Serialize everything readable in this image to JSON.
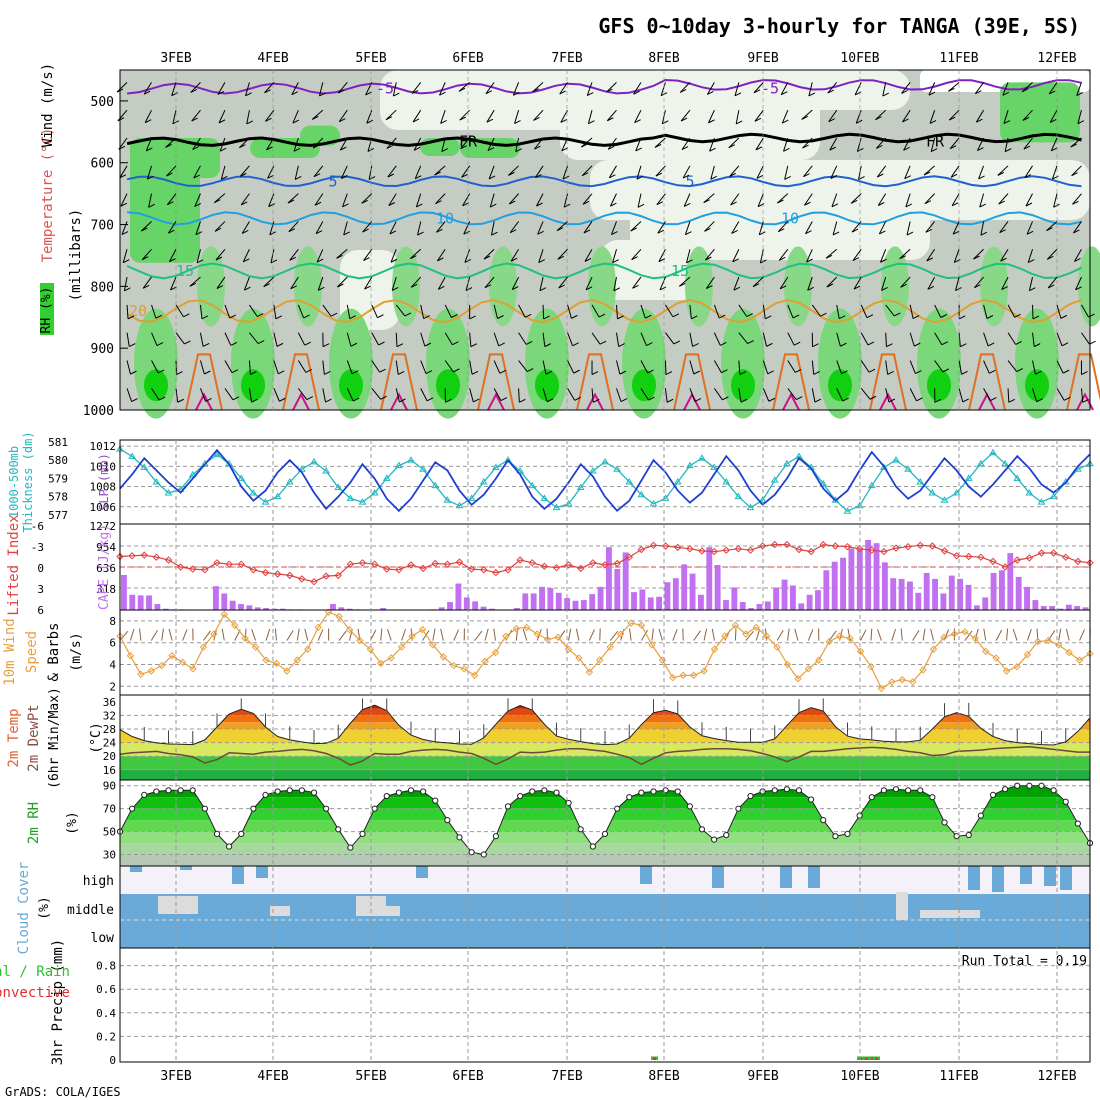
{
  "title": "GFS 0~10day 3-hourly for TANGA (39E, 5S)",
  "credit": "GrADS: COLA/IGES",
  "dates": [
    "3FEB",
    "4FEB",
    "5FEB",
    "6FEB",
    "7FEB",
    "8FEB",
    "9FEB",
    "10FEB",
    "11FEB",
    "12FEB"
  ],
  "colors": {
    "slp": "#1f3fd0",
    "thickness": "#20b8c0",
    "lifted": "#e04040",
    "cape": "#c070f0",
    "wind": "#e8a040",
    "barb": "#8a6040",
    "rh_line": "#202020",
    "cloud": "#6aaad8",
    "rain": "#30c030",
    "conv": "#e03030"
  },
  "panels": {
    "upper": {
      "label_rh": "RH (%)",
      "label_temp": "Temperature (°C)",
      "label_wind": "Wind (m/s)",
      "label_mb": "(millibars)",
      "yticks": [
        "500",
        "600",
        "700",
        "800",
        "900",
        "1000"
      ],
      "contours": [
        {
          "label": "-5",
          "color": "#8020c0"
        },
        {
          "label": "FR",
          "color": "#000000"
        },
        {
          "label": "5",
          "color": "#2060d0"
        },
        {
          "label": "10",
          "color": "#20a0e0"
        },
        {
          "label": "15",
          "color": "#20c080"
        },
        {
          "label": "20",
          "color": "#e0a030"
        }
      ]
    },
    "slp": {
      "label_thk1": "1000-500mb",
      "label_thk2": "Thickness (dm)",
      "label_slp": "SLP (mb)",
      "left_ticks": [
        "581",
        "580",
        "579",
        "578",
        "577"
      ],
      "right_ticks": [
        "1012",
        "1010",
        "1008",
        "1006"
      ]
    },
    "cape": {
      "label_li": "Lifted Index",
      "label_cape": "CAPE (J/kg)",
      "left_ticks": [
        "-6",
        "-3",
        "0",
        "3",
        "6"
      ],
      "right_ticks": [
        "1272",
        "954",
        "636",
        "318"
      ]
    },
    "wind10": {
      "label1": "10m Wind",
      "label2": "Speed",
      "label3": "& Barbs",
      "label4": "(m/s)",
      "yticks": [
        "8",
        "6",
        "4",
        "2"
      ]
    },
    "temp": {
      "label1": "2m Temp",
      "label2": "2m DewPt",
      "label3": "(6hr Min/Max)",
      "label4": "(°C)",
      "yticks": [
        "36",
        "32",
        "28",
        "24",
        "20",
        "16"
      ]
    },
    "rh2m": {
      "label1": "2m RH",
      "label2": "(%)",
      "yticks": [
        "90",
        "70",
        "50",
        "30"
      ]
    },
    "cloud": {
      "label1": "Cloud Cover",
      "label2": "(%)",
      "high": "high",
      "middle": "middle",
      "low": "low"
    },
    "precip": {
      "label1": "3hr Precip (mm)",
      "label2": "Total / Rain",
      "label3": "Convective",
      "run_total": "Run Total = 0.19",
      "yticks": [
        "0.8",
        "0.6",
        "0.4",
        "0.2",
        "0"
      ]
    }
  },
  "chart_data": {
    "type": "line",
    "title": "GFS 0~10day 3-hourly for TANGA (39E, 5S)",
    "x_axis": "3-hourly steps starting 2 FEB 06Z, 81 steps, tick marks at 00Z each day",
    "series": [
      {
        "name": "SLP (mb)",
        "values": [
          1007.8,
          1009.2,
          1010.8,
          1009.6,
          1008.4,
          1007.4,
          1008.8,
          1010.2,
          1011.6,
          1010.2,
          1008.0,
          1006.6,
          1007.6,
          1009.4,
          1010.6,
          1009.4,
          1007.4,
          1005.8,
          1007.0,
          1008.4,
          1010.2,
          1008.8,
          1006.8,
          1005.6,
          1006.8,
          1008.6,
          1010.4,
          1009.6,
          1007.6,
          1006.2,
          1007.2,
          1008.8,
          1010.6,
          1009.2,
          1007.0,
          1005.8,
          1006.8,
          1008.4,
          1010.2,
          1009.0,
          1007.0,
          1005.6,
          1006.6,
          1008.6,
          1010.6,
          1009.4,
          1007.6,
          1006.4,
          1007.4,
          1009.2,
          1011.0,
          1009.6,
          1007.6,
          1006.2,
          1007.2,
          1008.8,
          1010.8,
          1009.8,
          1007.8,
          1006.6,
          1007.6,
          1009.6,
          1011.4,
          1010.0,
          1008.0,
          1006.8,
          1007.6,
          1009.2,
          1010.8,
          1009.6,
          1008.0,
          1007.0,
          1008.2,
          1009.6,
          1011.0,
          1009.8,
          1008.2,
          1007.4,
          1008.4,
          1010.0,
          1011.2
        ]
      },
      {
        "name": "Thickness (dm)",
        "values": [
          580.6,
          580.2,
          579.6,
          578.8,
          578.2,
          578.4,
          579.2,
          579.8,
          580.3,
          579.8,
          579.0,
          578.2,
          577.7,
          578.0,
          578.8,
          579.5,
          579.9,
          579.4,
          578.5,
          577.9,
          577.7,
          578.2,
          579.0,
          579.7,
          580.0,
          579.5,
          578.6,
          577.8,
          577.5,
          577.9,
          578.8,
          579.6,
          580.0,
          579.4,
          578.6,
          577.9,
          577.4,
          577.6,
          578.5,
          579.4,
          579.9,
          579.5,
          578.8,
          578.1,
          577.6,
          577.9,
          578.8,
          579.7,
          580.1,
          579.6,
          578.8,
          578.0,
          577.4,
          577.8,
          578.9,
          579.8,
          580.2,
          579.6,
          578.7,
          577.8,
          577.2,
          577.5,
          578.6,
          579.6,
          580.0,
          579.5,
          578.8,
          578.2,
          577.8,
          578.2,
          579.0,
          579.8,
          580.4,
          579.8,
          579.0,
          578.2,
          577.7,
          578.0,
          578.8,
          579.5,
          579.8
        ]
      },
      {
        "name": "Lifted Index",
        "values": [
          -1.5,
          -1.6,
          -1.7,
          -1.4,
          -1.0,
          0.0,
          0.3,
          0.4,
          -0.6,
          -0.4,
          -0.4,
          0.4,
          0.8,
          1.0,
          1.2,
          1.7,
          2.1,
          1.3,
          1.2,
          -0.4,
          -0.6,
          -0.4,
          0.3,
          0.4,
          -0.3,
          0.2,
          -0.5,
          -0.4,
          -0.7,
          0.3,
          0.4,
          0.8,
          0.4,
          -1.0,
          -0.6,
          -0.1,
          0.1,
          -0.3,
          0.2,
          -0.6,
          -0.3,
          -0.5,
          -1.4,
          -2.5,
          -3.1,
          -3.0,
          -2.8,
          -2.6,
          -2.3,
          -2.2,
          -2.4,
          -2.6,
          -2.4,
          -3.0,
          -3.2,
          -3.2,
          -2.5,
          -2.2,
          -3.2,
          -3.0,
          -2.9,
          -2.6,
          -2.4,
          -2.2,
          -2.7,
          -2.9,
          -3.1,
          -3.0,
          -2.3,
          -1.6,
          -1.5,
          -1.4,
          -0.8,
          0.0,
          -1.0,
          -1.3,
          -2.0,
          -2.0,
          -1.4,
          -0.8,
          -0.6
        ]
      },
      {
        "name": "CAPE (J/kg)",
        "values": [
          530,
          230,
          220,
          220,
          90,
          20,
          10,
          10,
          0,
          0,
          0,
          360,
          250,
          140,
          90,
          70,
          40,
          30,
          20,
          20,
          10,
          10,
          0,
          0,
          0,
          90,
          40,
          20,
          10,
          0,
          0,
          30,
          0,
          0,
          0,
          0,
          0,
          10,
          40,
          120,
          400,
          190,
          130,
          50,
          20,
          0,
          0,
          30,
          250,
          250,
          350,
          330,
          260,
          180,
          140,
          150,
          240,
          350,
          950,
          620,
          870,
          270,
          310,
          190,
          200,
          420,
          480,
          690,
          550,
          230,
          950,
          680,
          150,
          340,
          120,
          30,
          90,
          130,
          340,
          460,
          370,
          100,
          230,
          300,
          600,
          730,
          790,
          930,
          920,
          1060,
          1010,
          720,
          480,
          470,
          430,
          260,
          560,
          470,
          250,
          520,
          470,
          380,
          70,
          190,
          560,
          600,
          860,
          500,
          350,
          150,
          60,
          60,
          20,
          80,
          60,
          40
        ]
      },
      {
        "name": "10m Wind Speed (m/s)",
        "values": [
          6.6,
          4.8,
          3.1,
          3.4,
          3.9,
          4.8,
          4.2,
          3.6,
          5.6,
          6.8,
          8.6,
          7.6,
          6.4,
          5.6,
          4.4,
          4.1,
          3.4,
          4.4,
          5.4,
          7.4,
          8.8,
          8.4,
          7.2,
          6.2,
          5.4,
          4.1,
          4.6,
          5.6,
          6.6,
          7.2,
          5.8,
          4.7,
          3.9,
          3.6,
          3.0,
          4.3,
          5.1,
          6.6,
          7.3,
          7.4,
          6.8,
          6.3,
          6.5,
          5.4,
          4.6,
          3.3,
          4.4,
          5.6,
          6.8,
          7.8,
          7.6,
          5.8,
          4.4,
          2.8,
          3.0,
          3.0,
          3.4,
          5.4,
          6.6,
          7.6,
          6.8,
          7.4,
          6.6,
          5.6,
          4.0,
          2.7,
          3.6,
          4.4,
          6.1,
          6.6,
          6.4,
          5.2,
          3.8,
          1.8,
          2.4,
          2.6,
          2.4,
          3.5,
          5.4,
          6.5,
          6.8,
          7.0,
          6.4,
          5.2,
          4.6,
          3.4,
          3.8,
          4.9,
          6.1,
          6.2,
          5.8,
          5.1,
          4.4,
          5.0
        ]
      },
      {
        "name": "2m Temp (°C)",
        "values": [
          27.8,
          25.8,
          24.6,
          23.9,
          23.6,
          23.5,
          23.4,
          24.8,
          28.6,
          32.4,
          33.8,
          32.6,
          28.6,
          25.8,
          24.8,
          24.2,
          23.7,
          23.8,
          25.3,
          29.7,
          33.7,
          35.0,
          33.4,
          29.1,
          26.2,
          24.9,
          24.2,
          23.9,
          23.6,
          23.5,
          25.4,
          29.4,
          33.3,
          34.9,
          33.6,
          29.4,
          25.9,
          25.0,
          24.3,
          23.7,
          23.4,
          23.6,
          25.3,
          29.3,
          32.8,
          33.5,
          32.4,
          28.6,
          26.0,
          25.2,
          24.6,
          24.1,
          24.1,
          24.1,
          25.1,
          29.0,
          32.8,
          34.3,
          33.3,
          28.7,
          25.9,
          25.1,
          24.8,
          24.4,
          24.2,
          24.2,
          24.7,
          28.0,
          31.6,
          32.8,
          31.7,
          28.2,
          25.8,
          24.6,
          24.0,
          23.7,
          23.4,
          23.3,
          24.2,
          27.3,
          31.3
        ]
      },
      {
        "name": "2m DewPt (°C)",
        "values": [
          20.6,
          21.0,
          21.2,
          21.4,
          20.8,
          20.4,
          19.8,
          18.0,
          19.0,
          21.0,
          20.8,
          20.6,
          21.2,
          21.4,
          21.8,
          22.0,
          21.6,
          20.8,
          19.4,
          17.4,
          18.6,
          20.8,
          20.6,
          20.6,
          21.4,
          21.8,
          22.0,
          21.8,
          21.2,
          20.8,
          19.4,
          17.6,
          19.2,
          21.2,
          21.0,
          21.2,
          21.8,
          22.2,
          22.2,
          21.8,
          21.4,
          20.6,
          19.6,
          17.6,
          19.4,
          21.0,
          21.4,
          21.6,
          22.0,
          22.2,
          22.2,
          22.0,
          21.6,
          20.8,
          19.8,
          18.4,
          19.8,
          21.4,
          21.4,
          21.8,
          22.2,
          22.4,
          22.6,
          22.4,
          22.0,
          21.4,
          21.0,
          20.2,
          20.4,
          21.4,
          21.6,
          21.8,
          22.2,
          22.4,
          22.6,
          22.8,
          22.4,
          22.0,
          21.6,
          21.2,
          21.2
        ]
      },
      {
        "name": "2m RH (%)",
        "values": [
          50,
          70,
          82,
          85,
          86,
          86,
          86,
          70,
          48,
          37,
          48,
          70,
          82,
          85,
          86,
          86,
          84,
          70,
          52,
          36,
          48,
          70,
          81,
          84,
          86,
          85,
          77,
          60,
          45,
          32,
          30,
          46,
          72,
          81,
          85,
          86,
          84,
          75,
          52,
          37,
          48,
          70,
          80,
          84,
          85,
          86,
          85,
          72,
          52,
          43,
          47,
          70,
          81,
          85,
          86,
          87,
          86,
          78,
          60,
          46,
          48,
          64,
          80,
          86,
          87,
          86,
          86,
          80,
          58,
          46,
          47,
          64,
          82,
          87,
          90,
          90,
          90,
          86,
          76,
          57,
          40
        ]
      },
      {
        "name": "3hr Precip (mm)",
        "values": [
          0.02,
          0.03,
          0.03,
          0.03,
          0.03
        ]
      }
    ]
  }
}
